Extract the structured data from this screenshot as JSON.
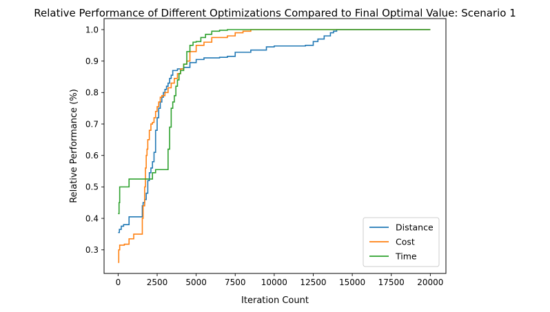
{
  "chart_data": {
    "type": "line",
    "title": "Relative Performance of Different Optimizations Compared to Final Optimal Value: Scenario 1",
    "xlabel": "Iteration Count",
    "ylabel": "Relative Performance (%)",
    "xlim": [
      -900,
      21000
    ],
    "ylim": [
      0.225,
      1.035
    ],
    "xticks": [
      0,
      2500,
      5000,
      7500,
      10000,
      12500,
      15000,
      17500,
      20000
    ],
    "yticks": [
      0.3,
      0.4,
      0.5,
      0.6,
      0.7,
      0.8,
      0.9,
      1.0
    ],
    "xtick_labels": [
      "0",
      "2500",
      "5000",
      "7500",
      "10000",
      "12500",
      "15000",
      "17500",
      "20000"
    ],
    "ytick_labels": [
      "0.3",
      "0.4",
      "0.5",
      "0.6",
      "0.7",
      "0.8",
      "0.9",
      "1.0"
    ],
    "grid": false,
    "legend": {
      "location": "lower right"
    },
    "step": true,
    "series": [
      {
        "name": "Distance",
        "color": "#1f77b4",
        "x": [
          0,
          80,
          200,
          350,
          700,
          1500,
          1550,
          1600,
          1700,
          1800,
          1900,
          2000,
          2100,
          2200,
          2300,
          2400,
          2500,
          2600,
          2700,
          2800,
          2900,
          3000,
          3100,
          3200,
          3300,
          3400,
          3500,
          3800,
          4200,
          4600,
          5000,
          5500,
          6500,
          7000,
          7500,
          8500,
          9500,
          10000,
          12000,
          12500,
          12800,
          13200,
          13600,
          13800,
          14000,
          20000
        ],
        "y": [
          0.355,
          0.365,
          0.375,
          0.38,
          0.405,
          0.405,
          0.44,
          0.45,
          0.46,
          0.48,
          0.52,
          0.545,
          0.56,
          0.58,
          0.61,
          0.68,
          0.72,
          0.75,
          0.77,
          0.785,
          0.8,
          0.81,
          0.82,
          0.83,
          0.845,
          0.855,
          0.87,
          0.875,
          0.88,
          0.895,
          0.905,
          0.91,
          0.912,
          0.915,
          0.928,
          0.935,
          0.945,
          0.948,
          0.95,
          0.962,
          0.97,
          0.98,
          0.99,
          0.995,
          1.0,
          1.0
        ]
      },
      {
        "name": "Cost",
        "color": "#ff7f0e",
        "x": [
          0,
          40,
          100,
          400,
          700,
          1000,
          1500,
          1550,
          1600,
          1700,
          1750,
          1800,
          1850,
          1900,
          2000,
          2100,
          2200,
          2300,
          2400,
          2500,
          2600,
          2700,
          2800,
          3000,
          3200,
          3400,
          3600,
          3800,
          4000,
          4200,
          4400,
          4600,
          5000,
          5500,
          6000,
          7000,
          7500,
          8000,
          8500,
          20000
        ],
        "y": [
          0.26,
          0.3,
          0.315,
          0.318,
          0.335,
          0.35,
          0.35,
          0.4,
          0.44,
          0.5,
          0.56,
          0.6,
          0.62,
          0.65,
          0.68,
          0.7,
          0.705,
          0.72,
          0.74,
          0.755,
          0.77,
          0.785,
          0.79,
          0.8,
          0.815,
          0.83,
          0.845,
          0.86,
          0.875,
          0.89,
          0.9,
          0.93,
          0.95,
          0.96,
          0.975,
          0.98,
          0.99,
          0.995,
          1.0,
          1.0
        ]
      },
      {
        "name": "Time",
        "color": "#2ca02c",
        "x": [
          0,
          60,
          100,
          700,
          2000,
          2200,
          2400,
          3000,
          3200,
          3300,
          3400,
          3500,
          3600,
          3700,
          3800,
          3900,
          4000,
          4200,
          4400,
          4600,
          4800,
          5000,
          5300,
          5600,
          6000,
          6500,
          7000,
          20000
        ],
        "y": [
          0.415,
          0.45,
          0.5,
          0.525,
          0.525,
          0.545,
          0.555,
          0.555,
          0.62,
          0.69,
          0.75,
          0.77,
          0.79,
          0.82,
          0.84,
          0.86,
          0.87,
          0.89,
          0.93,
          0.95,
          0.96,
          0.962,
          0.975,
          0.985,
          0.995,
          0.998,
          1.0,
          1.0
        ]
      }
    ]
  }
}
